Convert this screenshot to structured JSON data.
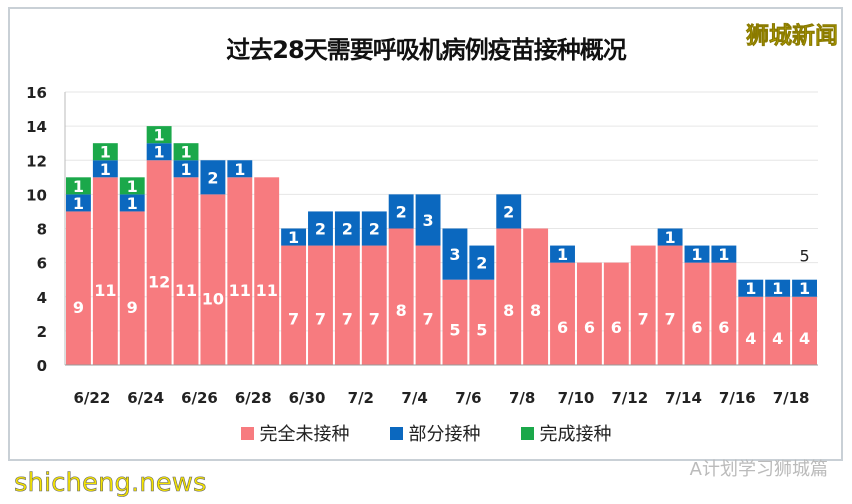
{
  "logo": "狮城新闻",
  "watermark": "shicheng.news",
  "wechat_source": "A计划学习狮城篇",
  "colors": {
    "unvaccinated": "#F77B7F",
    "partial": "#0B68BF",
    "full": "#1BA84A"
  },
  "chart_data": {
    "type": "bar",
    "stacked": true,
    "title": "过去28天需要呼吸机病例疫苗接种概况",
    "xlabel": "",
    "ylabel": "",
    "ylim": [
      0,
      16
    ],
    "yticks": [
      0,
      2,
      4,
      6,
      8,
      10,
      12,
      14,
      16
    ],
    "grid": true,
    "legend_position": "bottom",
    "categories": [
      "6/22",
      "6/23",
      "6/24",
      "6/25",
      "6/26",
      "6/27",
      "6/28",
      "6/29",
      "6/30",
      "7/1",
      "7/2",
      "7/3",
      "7/4",
      "7/5",
      "7/6",
      "7/7",
      "7/8",
      "7/9",
      "7/10",
      "7/11",
      "7/12",
      "7/13",
      "7/14",
      "7/15",
      "7/16",
      "7/17",
      "7/18",
      "7/19"
    ],
    "xtick_labels": [
      "6/22",
      "6/24",
      "6/26",
      "6/28",
      "6/30",
      "7/2",
      "7/4",
      "7/6",
      "7/8",
      "7/10",
      "7/12",
      "7/14",
      "7/16",
      "7/18"
    ],
    "series": [
      {
        "name": "完全未接种",
        "values": [
          9,
          11,
          9,
          12,
          11,
          10,
          11,
          11,
          7,
          7,
          7,
          7,
          8,
          7,
          5,
          5,
          8,
          8,
          6,
          6,
          6,
          7,
          7,
          6,
          6,
          4,
          4,
          4
        ]
      },
      {
        "name": "部分接种",
        "values": [
          1,
          1,
          1,
          1,
          1,
          2,
          1,
          0,
          1,
          2,
          2,
          2,
          2,
          3,
          3,
          2,
          2,
          0,
          1,
          0,
          0,
          0,
          1,
          1,
          1,
          1,
          1,
          1
        ]
      },
      {
        "name": "完成接种",
        "values": [
          1,
          1,
          1,
          1,
          1,
          0,
          0,
          0,
          0,
          0,
          0,
          0,
          0,
          0,
          0,
          0,
          0,
          0,
          0,
          0,
          0,
          0,
          0,
          0,
          0,
          0,
          0,
          0
        ]
      }
    ],
    "annotations": [
      {
        "category": "7/19",
        "text": "5"
      }
    ]
  }
}
